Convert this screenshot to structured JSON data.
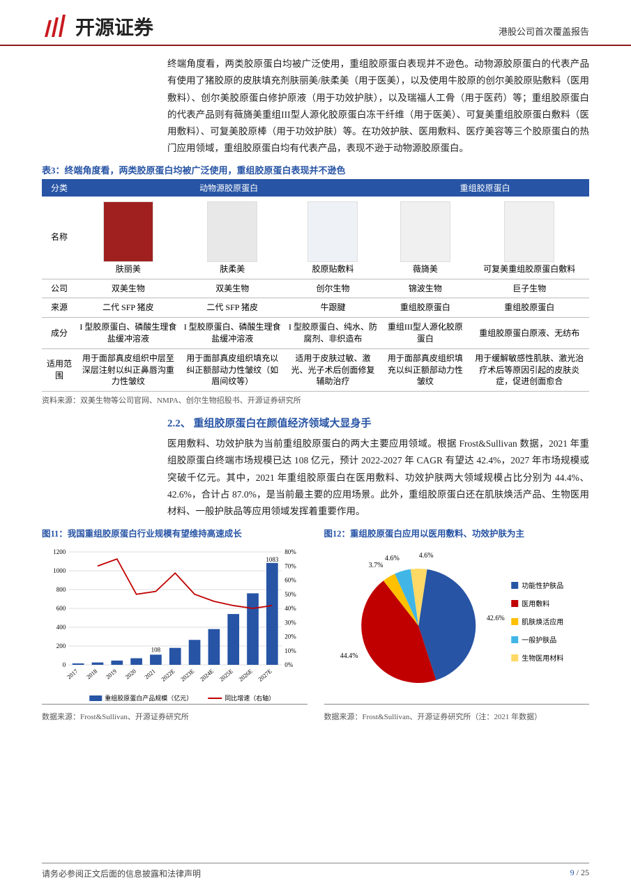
{
  "header": {
    "brand": "开源证券",
    "doc_type": "港股公司首次覆盖报告",
    "logo_color": "#c8191e"
  },
  "intro_para": "终端角度看，两类胶原蛋白均被广泛使用，重组胶原蛋白表现并不逊色。动物源胶原蛋白的代表产品有使用了猪胶原的皮肤填充剂肤丽美/肤柔美（用于医美），以及使用牛胶原的创尔美胶原贴敷料（医用敷料）、创尔美胶原蛋白修护原液（用于功效护肤），以及瑞福人工骨（用于医药）等；重组胶原蛋白的代表产品则有薇旖美重组III型人源化胶原蛋白冻干纤维（用于医美）、可复美重组胶原蛋白敷料（医用敷料）、可复美胶原棒（用于功效护肤）等。在功效护肤、医用敷料、医疗美容等三个胶原蛋白的热门应用领域，重组胶原蛋白均有代表产品，表现不逊于动物源胶原蛋白。",
  "table3": {
    "caption": "表3：终端角度看，两类胶原蛋白均被广泛使用，重组胶原蛋白表现并不逊色",
    "header_bg": "#2754a5",
    "col_group1": "动物源胶原蛋白",
    "col_group2": "重组胶原蛋白",
    "label_category": "分类",
    "row_labels": [
      "名称",
      "公司",
      "来源",
      "成分",
      "适用范围"
    ],
    "products": [
      {
        "name": "肤丽美",
        "company": "双美生物",
        "source": "二代 SFP 猪皮",
        "comp": "I 型胶原蛋白、磷酸生理食盐缓冲溶液",
        "use": "用于面部真皮组织中层至深层注射以纠正鼻唇沟重力性皱纹",
        "img_bg": "#a02020"
      },
      {
        "name": "肤柔美",
        "company": "双美生物",
        "source": "二代 SFP 猪皮",
        "comp": "I 型胶原蛋白、磷酸生理食盐缓冲溶液",
        "use": "用于面部真皮组织填充以纠正额部动力性皱纹（如眉间纹等）",
        "img_bg": "#e8e8e8"
      },
      {
        "name": "胶原贴敷料",
        "company": "创尔生物",
        "source": "牛跟腱",
        "comp": "I 型胶原蛋白、纯水、防腐剂、非织造布",
        "use": "适用于皮肤过敏、激光、光子术后创面修复辅助治疗",
        "img_bg": "#eef2f6"
      },
      {
        "name": "薇旖美",
        "company": "锦波生物",
        "source": "重组胶原蛋白",
        "comp": "重组III型人源化胶原蛋白",
        "use": "用于面部真皮组织填充以纠正额部动力性皱纹",
        "img_bg": "#f0f0f0"
      },
      {
        "name": "可复美重组胶原蛋白敷料",
        "company": "巨子生物",
        "source": "重组胶原蛋白",
        "comp": "重组胶原蛋白原液、无纺布",
        "use": "用于缓解敏感性肌肤、激光治疗术后等原因引起的皮肤炎症，促进创面愈合",
        "img_bg": "#f0f0f0"
      }
    ],
    "source": "资料来源：双美生物等公司官网、NMPA、创尔生物招股书、开源证券研究所"
  },
  "section22": {
    "heading": "2.2、 重组胶原蛋白在颜值经济领域大显身手",
    "para": "医用敷料、功效护肤为当前重组胶原蛋白的两大主要应用领域。根据 Frost&Sullivan 数据，2021 年重组胶原蛋白终端市场规模已达 108 亿元，预计 2022-2027 年 CAGR 有望达 42.4%，2027 年市场规模或突破千亿元。其中，2021 年重组胶原蛋白在医用敷料、功效护肤两大领域规模占比分别为 44.4%、42.6%，合计占 87.0%，是当前最主要的应用场景。此外，重组胶原蛋白还在肌肤焕活产品、生物医用材料、一般护肤品等应用领域发挥着重要作用。"
  },
  "fig11": {
    "title": "图11：我国重组胶原蛋白行业规模有望维持高速成长",
    "type": "bar+line",
    "x_labels": [
      "2017",
      "2018",
      "2019",
      "2020",
      "2021",
      "2022E",
      "2023E",
      "2024E",
      "2025E",
      "2026E",
      "2027E"
    ],
    "bar_values": [
      15,
      25,
      45,
      70,
      108,
      180,
      265,
      380,
      540,
      760,
      1083
    ],
    "line_values_pct": [
      null,
      70,
      75,
      50,
      52,
      65,
      50,
      45,
      42,
      40,
      42
    ],
    "bar_color": "#2754a5",
    "line_color": "#c00000",
    "y_left_max": 1200,
    "y_left_step": 200,
    "y_right_max": 80,
    "y_right_step": 10,
    "callout_108": "108",
    "callout_1083": "1083",
    "legend_bar": "重组胶原蛋白产品规模（亿元）",
    "legend_line": "同比增速（右轴）",
    "source": "数据来源：Frost&Sullivan、开源证券研究所"
  },
  "fig12": {
    "title": "图12：重组胶原蛋白应用以医用敷料、功效护肤为主",
    "type": "pie",
    "slices": [
      {
        "label": "功能性护肤品",
        "value": 42.6,
        "color": "#2754a5"
      },
      {
        "label": "医用敷料",
        "value": 44.4,
        "color": "#c00000"
      },
      {
        "label": "肌肤焕活应用",
        "value": 3.7,
        "color": "#ffc000"
      },
      {
        "label": "一般护肤品",
        "value": 4.6,
        "color": "#41b6e6"
      },
      {
        "label": "生物医用材料",
        "value": 4.6,
        "color": "#ffd966"
      }
    ],
    "callouts": [
      "42.6%",
      "44.4%",
      "3.7%",
      "4.6%",
      "4.6%"
    ],
    "source": "数据来源：Frost&Sullivan、开源证券研究所（注：2021 年数据）"
  },
  "footer": {
    "disclaimer": "请务必参阅正文后面的信息披露和法律声明",
    "page_cur": "9",
    "page_total": "25"
  }
}
